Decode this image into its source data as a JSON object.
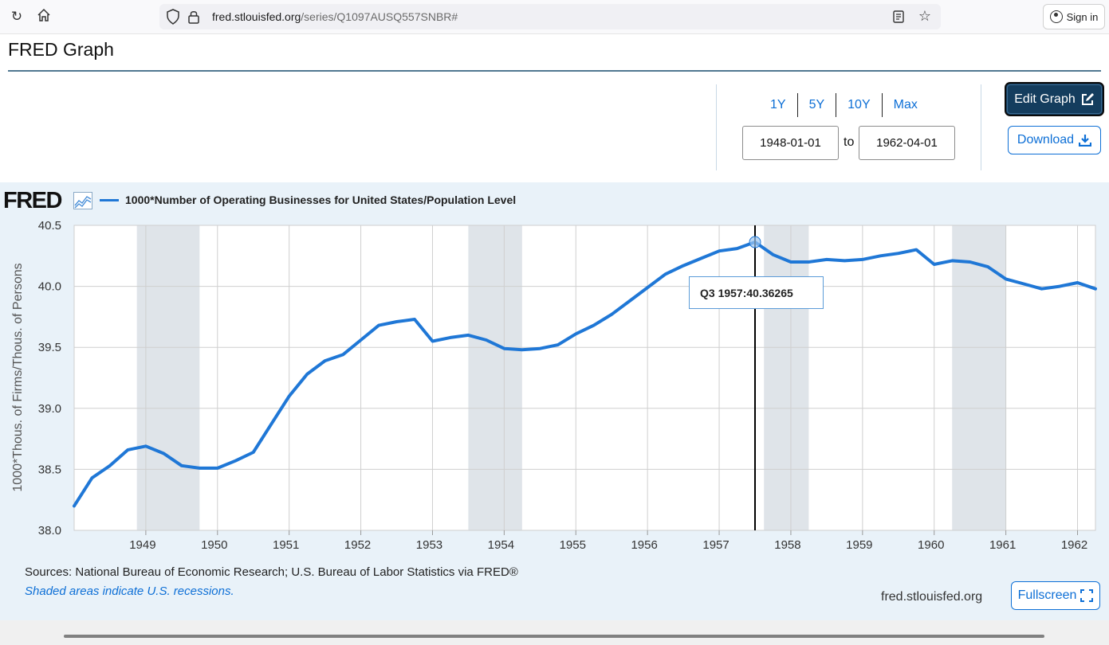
{
  "browser": {
    "url_host": "fred.stlouisfed.org",
    "url_path": "/series/Q1097AUSQ557SNBR#",
    "sign_in_label": "Sign in"
  },
  "page": {
    "title": "FRED Graph"
  },
  "controls": {
    "periods": [
      "1Y",
      "5Y",
      "10Y",
      "Max"
    ],
    "start_date": "1948-01-01",
    "to_label": "to",
    "end_date": "1962-04-01",
    "edit_label": "Edit Graph",
    "download_label": "Download"
  },
  "graph": {
    "logo_text": "FRED",
    "legend_label": "1000*Number of Operating Businesses for United States/Population Level",
    "tooltip_period": "Q3 1957:",
    "tooltip_value": "40.36265",
    "sources": "Sources: National Bureau of Economic Research; U.S. Bureau of Labor Statistics via FRED®",
    "recession_note": "Shaded areas indicate U.S. recessions.",
    "site": "fred.stlouisfed.org",
    "fullscreen_label": "Fullscreen"
  },
  "chart_data": {
    "type": "line",
    "title": "",
    "xlabel": "",
    "ylabel": "1000*Thous. of Firms/Thous. of Persons",
    "x_range": [
      1948.0,
      1962.25
    ],
    "ylim": [
      38.0,
      40.5
    ],
    "y_ticks": [
      "38.0",
      "38.5",
      "39.0",
      "39.5",
      "40.0",
      "40.5"
    ],
    "x_ticks": [
      "1949",
      "1950",
      "1951",
      "1952",
      "1953",
      "1954",
      "1955",
      "1956",
      "1957",
      "1958",
      "1959",
      "1960",
      "1961",
      "1962"
    ],
    "grid": true,
    "color": "#1f77d6",
    "recession_color": "#dfe4e9",
    "recessions": [
      [
        1948.875,
        1949.75
      ],
      [
        1953.5,
        1954.25
      ],
      [
        1957.625,
        1958.25
      ],
      [
        1960.25,
        1961.0
      ]
    ],
    "highlight": {
      "x": 1957.5,
      "value": 40.36265
    },
    "series": [
      {
        "name": "1000*Number of Operating Businesses for United States/Population Level",
        "x": [
          1948.0,
          1948.25,
          1948.5,
          1948.75,
          1949.0,
          1949.25,
          1949.5,
          1949.75,
          1950.0,
          1950.25,
          1950.5,
          1950.75,
          1951.0,
          1951.25,
          1951.5,
          1951.75,
          1952.0,
          1952.25,
          1952.5,
          1952.75,
          1953.0,
          1953.25,
          1953.5,
          1953.75,
          1954.0,
          1954.25,
          1954.5,
          1954.75,
          1955.0,
          1955.25,
          1955.5,
          1955.75,
          1956.0,
          1956.25,
          1956.5,
          1956.75,
          1957.0,
          1957.25,
          1957.5,
          1957.75,
          1958.0,
          1958.25,
          1958.5,
          1958.75,
          1959.0,
          1959.25,
          1959.5,
          1959.75,
          1960.0,
          1960.25,
          1960.5,
          1960.75,
          1961.0,
          1961.25,
          1961.5,
          1961.75,
          1962.0,
          1962.25
        ],
        "values": [
          38.2,
          38.43,
          38.53,
          38.66,
          38.69,
          38.63,
          38.53,
          38.51,
          38.51,
          38.57,
          38.64,
          38.87,
          39.1,
          39.28,
          39.39,
          39.44,
          39.56,
          39.68,
          39.71,
          39.73,
          39.55,
          39.58,
          39.6,
          39.56,
          39.49,
          39.48,
          39.49,
          39.52,
          39.61,
          39.68,
          39.77,
          39.88,
          39.99,
          40.1,
          40.17,
          40.23,
          40.29,
          40.31,
          40.36265,
          40.26,
          40.2,
          40.2,
          40.22,
          40.21,
          40.22,
          40.25,
          40.27,
          40.3,
          40.18,
          40.21,
          40.2,
          40.16,
          40.06,
          40.02,
          39.98,
          40.0,
          40.03,
          39.98
        ]
      }
    ]
  }
}
